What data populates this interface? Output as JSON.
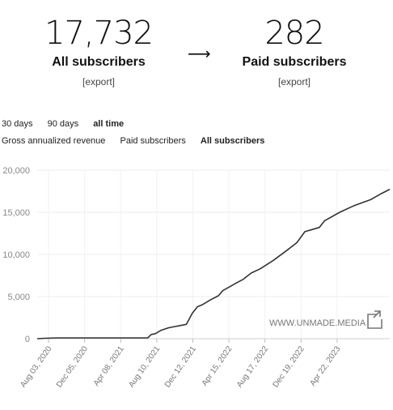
{
  "stats": {
    "all": {
      "value": "17,732",
      "label": "All subscribers",
      "export": "[export]"
    },
    "arrow": "⟶",
    "paid": {
      "value": "282",
      "label": "Paid subscribers",
      "export": "[export]"
    }
  },
  "range_tabs": [
    {
      "label": "30 days",
      "active": false
    },
    {
      "label": "90 days",
      "active": false
    },
    {
      "label": "all time",
      "active": true
    }
  ],
  "metric_tabs": [
    {
      "label": "Gross annualized revenue",
      "active": false
    },
    {
      "label": "Paid subscribers",
      "active": false
    },
    {
      "label": "All subscribers",
      "active": true
    }
  ],
  "watermark": "WWW.UNMADE.MEDIA",
  "chart_data": {
    "type": "line",
    "ylim": [
      0,
      20000
    ],
    "yticks": [
      "0",
      "5,000",
      "10,000",
      "15,000",
      "20,000"
    ],
    "ytick_values": [
      0,
      5000,
      10000,
      15000,
      20000
    ],
    "xticks": [
      "Aug 03, 2020",
      "Dec 05, 2020",
      "Apr 08, 2021",
      "Aug 10, 2021",
      "Dec 12, 2021",
      "Apr 15, 2022",
      "Aug 17, 2022",
      "Dec 19, 2022",
      "Apr 22, 2023"
    ],
    "grid": true,
    "line_color": "#333333",
    "series": [
      {
        "x": [
          "2020-06-25",
          "2020-07-20",
          "2020-09-01",
          "2021-06-01",
          "2021-07-10",
          "2021-07-22",
          "2021-08-05",
          "2021-08-25",
          "2021-09-20",
          "2021-11-20",
          "2021-12-10",
          "2021-12-28",
          "2022-01-12",
          "2022-02-10",
          "2022-03-10",
          "2022-03-25",
          "2022-05-15",
          "2022-06-01",
          "2022-07-01",
          "2022-08-01",
          "2022-09-15",
          "2022-11-01",
          "2022-12-05",
          "2023-01-01",
          "2023-02-20",
          "2023-03-10",
          "2023-05-01",
          "2023-06-20",
          "2023-08-15",
          "2023-09-20",
          "2023-10-20"
        ],
        "y": [
          0,
          50,
          100,
          100,
          100,
          500,
          600,
          1000,
          1300,
          1700,
          3000,
          3800,
          4000,
          4600,
          5100,
          5700,
          6700,
          7000,
          7800,
          8300,
          9300,
          10500,
          11400,
          12700,
          13200,
          14000,
          15000,
          15800,
          16500,
          17200,
          17732
        ]
      }
    ]
  }
}
